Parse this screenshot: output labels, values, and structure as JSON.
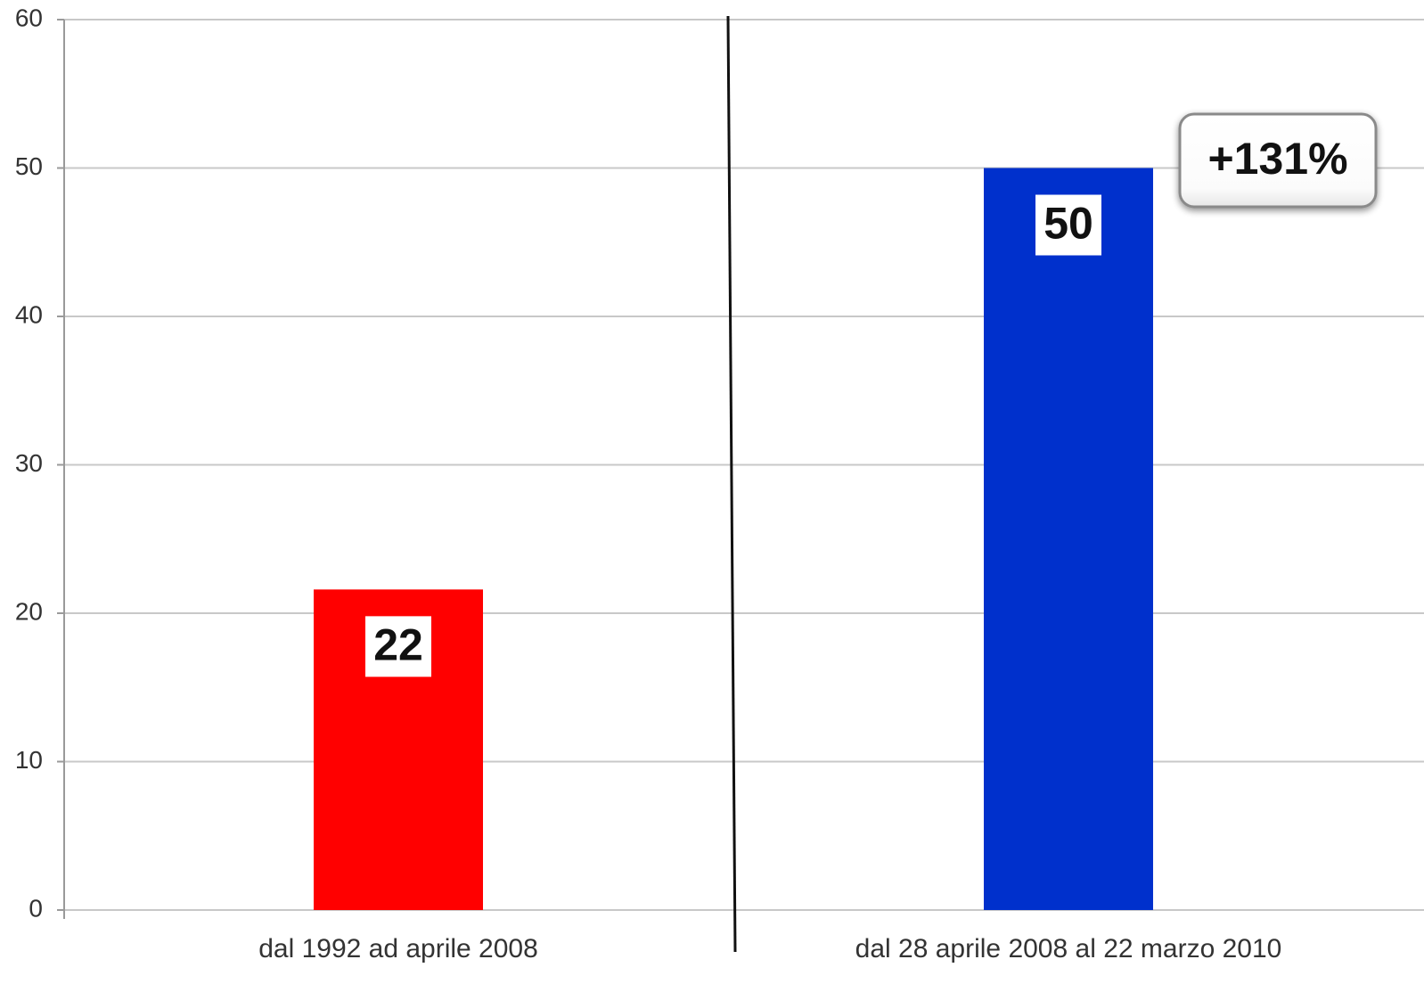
{
  "chart_data": {
    "type": "bar",
    "categories": [
      "dal 1992 ad aprile 2008",
      "dal 28 aprile 2008 al 22 marzo 2010"
    ],
    "values": [
      21.6,
      50
    ],
    "data_labels": [
      "22",
      "50"
    ],
    "bar_colors": [
      "#ff0000",
      "#0030cc"
    ],
    "ylim": [
      0,
      60
    ],
    "yticks": [
      0,
      10,
      20,
      30,
      40,
      50,
      60
    ],
    "grid": true,
    "annotation": "+131%",
    "title": "",
    "xlabel": "",
    "ylabel": ""
  }
}
